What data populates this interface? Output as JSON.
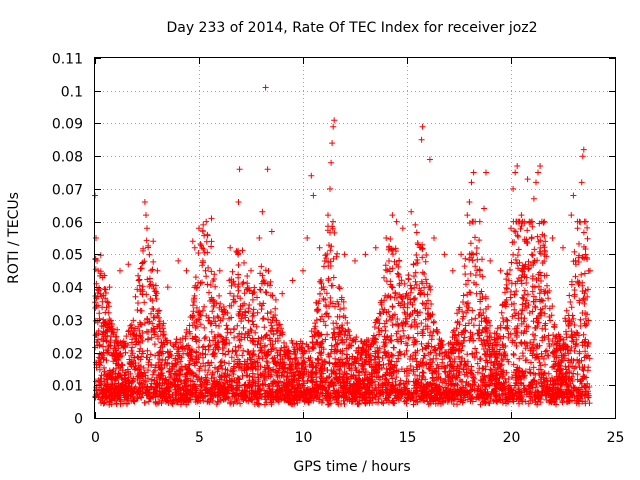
{
  "chart_data": {
    "type": "scatter",
    "title": "Day 233 of 2014, Rate Of TEC Index for receiver joz2",
    "xlabel": "GPS time / hours",
    "ylabel": "ROTI / TECUs",
    "xlim": [
      0,
      25
    ],
    "ylim": [
      0,
      0.11
    ],
    "xticks": [
      0,
      5,
      10,
      15,
      20,
      25
    ],
    "xtick_labels": [
      "0",
      "5",
      "10",
      "15",
      "20",
      "25"
    ],
    "yticks": [
      0,
      0.01,
      0.02,
      0.03,
      0.04,
      0.05,
      0.06,
      0.07,
      0.08,
      0.09,
      0.1,
      0.11
    ],
    "ytick_labels": [
      "0",
      "0.01",
      "0.02",
      "0.03",
      "0.04",
      "0.05",
      "0.06",
      "0.07",
      "0.08",
      "0.09",
      "0.1",
      "0.11"
    ],
    "grid": true,
    "marker": "+",
    "color": "#ff0000",
    "data_x_range_hours": [
      0,
      23.8
    ],
    "series": [
      {
        "name": "ROTI",
        "points": [
          [
            0.0,
            0.068
          ],
          [
            0.05,
            0.055
          ],
          [
            0.1,
            0.048
          ],
          [
            0.15,
            0.045
          ],
          [
            0.2,
            0.032
          ],
          [
            0.4,
            0.028
          ],
          [
            0.7,
            0.04
          ],
          [
            1.2,
            0.045
          ],
          [
            1.6,
            0.047
          ],
          [
            2.1,
            0.042
          ],
          [
            2.4,
            0.066
          ],
          [
            2.45,
            0.062
          ],
          [
            2.5,
            0.058
          ],
          [
            2.8,
            0.054
          ],
          [
            3.0,
            0.045
          ],
          [
            3.5,
            0.04
          ],
          [
            4.0,
            0.048
          ],
          [
            4.4,
            0.045
          ],
          [
            4.7,
            0.054
          ],
          [
            4.8,
            0.052
          ],
          [
            5.0,
            0.058
          ],
          [
            5.2,
            0.059
          ],
          [
            5.4,
            0.056
          ],
          [
            5.6,
            0.061
          ],
          [
            6.0,
            0.045
          ],
          [
            6.5,
            0.052
          ],
          [
            6.8,
            0.051
          ],
          [
            6.9,
            0.066
          ],
          [
            6.95,
            0.076
          ],
          [
            7.5,
            0.045
          ],
          [
            7.9,
            0.055
          ],
          [
            8.05,
            0.063
          ],
          [
            8.2,
            0.101
          ],
          [
            8.3,
            0.076
          ],
          [
            8.5,
            0.057
          ],
          [
            9.0,
            0.038
          ],
          [
            9.5,
            0.042
          ],
          [
            10.0,
            0.045
          ],
          [
            10.2,
            0.055
          ],
          [
            10.4,
            0.074
          ],
          [
            10.5,
            0.068
          ],
          [
            10.8,
            0.052
          ],
          [
            11.2,
            0.062
          ],
          [
            11.3,
            0.07
          ],
          [
            11.35,
            0.078
          ],
          [
            11.4,
            0.084
          ],
          [
            11.45,
            0.089
          ],
          [
            11.5,
            0.091
          ],
          [
            12.0,
            0.05
          ],
          [
            12.5,
            0.048
          ],
          [
            13.0,
            0.05
          ],
          [
            13.5,
            0.052
          ],
          [
            14.0,
            0.055
          ],
          [
            14.3,
            0.062
          ],
          [
            14.5,
            0.06
          ],
          [
            14.8,
            0.058
          ],
          [
            15.2,
            0.063
          ],
          [
            15.4,
            0.059
          ],
          [
            15.7,
            0.085
          ],
          [
            15.75,
            0.089
          ],
          [
            16.1,
            0.079
          ],
          [
            16.3,
            0.055
          ],
          [
            16.8,
            0.05
          ],
          [
            17.2,
            0.045
          ],
          [
            17.6,
            0.05
          ],
          [
            17.9,
            0.062
          ],
          [
            18.0,
            0.066
          ],
          [
            18.1,
            0.072
          ],
          [
            18.2,
            0.075
          ],
          [
            18.5,
            0.06
          ],
          [
            18.7,
            0.064
          ],
          [
            18.8,
            0.075
          ],
          [
            19.0,
            0.048
          ],
          [
            19.5,
            0.045
          ],
          [
            20.0,
            0.058
          ],
          [
            20.1,
            0.07
          ],
          [
            20.2,
            0.075
          ],
          [
            20.3,
            0.077
          ],
          [
            20.5,
            0.062
          ],
          [
            20.8,
            0.073
          ],
          [
            21.0,
            0.06
          ],
          [
            21.1,
            0.067
          ],
          [
            21.2,
            0.072
          ],
          [
            21.3,
            0.075
          ],
          [
            21.4,
            0.077
          ],
          [
            21.6,
            0.06
          ],
          [
            22.0,
            0.055
          ],
          [
            22.5,
            0.052
          ],
          [
            22.9,
            0.062
          ],
          [
            23.0,
            0.068
          ],
          [
            23.2,
            0.058
          ],
          [
            23.4,
            0.072
          ],
          [
            23.45,
            0.08
          ],
          [
            23.5,
            0.082
          ],
          [
            23.6,
            0.06
          ],
          [
            23.8,
            0.045
          ]
        ],
        "note": "Plus a dense cloud of thousands of points between about 0.003 and 0.05 TECU across 0-23.8 h (bulk roughly 0.005-0.025), generated procedurally."
      }
    ]
  }
}
